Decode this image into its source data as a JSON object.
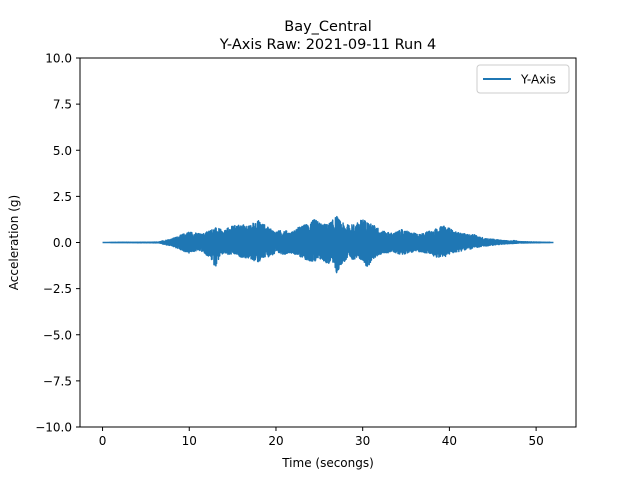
{
  "chart_data": {
    "type": "line",
    "title": "Bay_Central",
    "subtitle": "Y-Axis Raw: 2021-09-11 Run 4",
    "xlabel": "Time (secongs)",
    "ylabel": "Acceleration (g)",
    "xlim": [
      -2.6,
      54.6
    ],
    "ylim": [
      -10.0,
      10.0
    ],
    "xticks": [
      0,
      10,
      20,
      30,
      40,
      50
    ],
    "xtick_labels": [
      "0",
      "10",
      "20",
      "30",
      "40",
      "50"
    ],
    "yticks": [
      -10.0,
      -7.5,
      -5.0,
      -2.5,
      0.0,
      2.5,
      5.0,
      7.5,
      10.0
    ],
    "ytick_labels": [
      "−10.0",
      "−7.5",
      "−5.0",
      "−2.5",
      "0.0",
      "2.5",
      "5.0",
      "7.5",
      "10.0"
    ],
    "grid": false,
    "legend_position": "top-right",
    "color": "#1f77b4",
    "series": [
      {
        "name": "Y-Axis",
        "x": [
          0,
          6.5,
          7.0,
          7.5,
          8.0,
          8.5,
          9.0,
          9.5,
          10.0,
          10.5,
          11.0,
          11.5,
          12.0,
          12.5,
          13.0,
          13.5,
          14.0,
          14.5,
          15.0,
          15.5,
          16.0,
          16.5,
          17.0,
          17.5,
          18.0,
          18.5,
          19.0,
          19.5,
          20.0,
          20.5,
          21.0,
          21.5,
          22.0,
          22.5,
          23.0,
          23.5,
          24.0,
          24.5,
          25.0,
          25.5,
          26.0,
          26.5,
          27.0,
          27.5,
          28.0,
          28.5,
          29.0,
          29.5,
          30.0,
          30.5,
          31.0,
          31.5,
          32.0,
          32.5,
          33.0,
          33.5,
          34.0,
          34.5,
          35.0,
          35.5,
          36.0,
          36.5,
          37.0,
          37.5,
          38.0,
          38.5,
          39.0,
          39.5,
          40.0,
          40.5,
          41.0,
          41.5,
          42.0,
          42.5,
          43.0,
          43.5,
          44.0,
          44.5,
          45.0,
          45.5,
          46.0,
          46.5,
          47.0,
          47.5,
          48.0,
          52
        ],
        "upper": [
          0,
          0.02,
          0.1,
          0.15,
          0.2,
          0.3,
          0.4,
          0.5,
          0.6,
          0.55,
          0.5,
          0.45,
          0.6,
          0.7,
          0.8,
          0.75,
          0.6,
          0.8,
          0.9,
          0.95,
          1.0,
          0.95,
          0.9,
          1.15,
          1.2,
          1.05,
          0.85,
          0.7,
          0.6,
          0.65,
          0.7,
          0.55,
          0.6,
          0.8,
          0.9,
          1.0,
          1.15,
          1.25,
          1.1,
          1.0,
          1.0,
          1.2,
          1.45,
          1.1,
          1.0,
          0.95,
          1.0,
          1.1,
          1.3,
          1.15,
          1.0,
          0.9,
          0.7,
          0.6,
          0.55,
          0.5,
          0.6,
          0.7,
          0.65,
          0.55,
          0.5,
          0.45,
          0.5,
          0.6,
          0.7,
          0.75,
          0.85,
          0.9,
          0.8,
          0.6,
          0.55,
          0.5,
          0.45,
          0.4,
          0.45,
          0.3,
          0.25,
          0.2,
          0.18,
          0.15,
          0.12,
          0.1,
          0.08,
          0.12,
          0.05,
          0
        ],
        "lower": [
          0,
          -0.02,
          -0.1,
          -0.15,
          -0.2,
          -0.3,
          -0.4,
          -0.5,
          -0.6,
          -0.5,
          -0.45,
          -0.5,
          -0.7,
          -0.9,
          -1.35,
          -0.8,
          -0.6,
          -0.7,
          -0.65,
          -0.7,
          -0.8,
          -0.85,
          -0.9,
          -1.0,
          -1.1,
          -0.9,
          -0.8,
          -0.7,
          -0.65,
          -0.6,
          -0.65,
          -0.55,
          -0.6,
          -0.75,
          -0.8,
          -0.95,
          -1.0,
          -1.1,
          -0.95,
          -1.0,
          -1.2,
          -1.0,
          -1.75,
          -1.2,
          -1.0,
          -0.95,
          -0.9,
          -0.85,
          -1.0,
          -1.4,
          -1.0,
          -0.8,
          -0.65,
          -0.6,
          -0.55,
          -0.5,
          -0.6,
          -0.65,
          -0.6,
          -0.55,
          -0.5,
          -0.5,
          -0.55,
          -0.6,
          -0.7,
          -0.85,
          -0.75,
          -0.8,
          -0.65,
          -0.55,
          -0.5,
          -0.45,
          -0.4,
          -0.35,
          -0.3,
          -0.25,
          -0.2,
          -0.18,
          -0.15,
          -0.12,
          -0.1,
          -0.08,
          -0.06,
          -0.05,
          -0.03,
          0
        ]
      }
    ]
  }
}
